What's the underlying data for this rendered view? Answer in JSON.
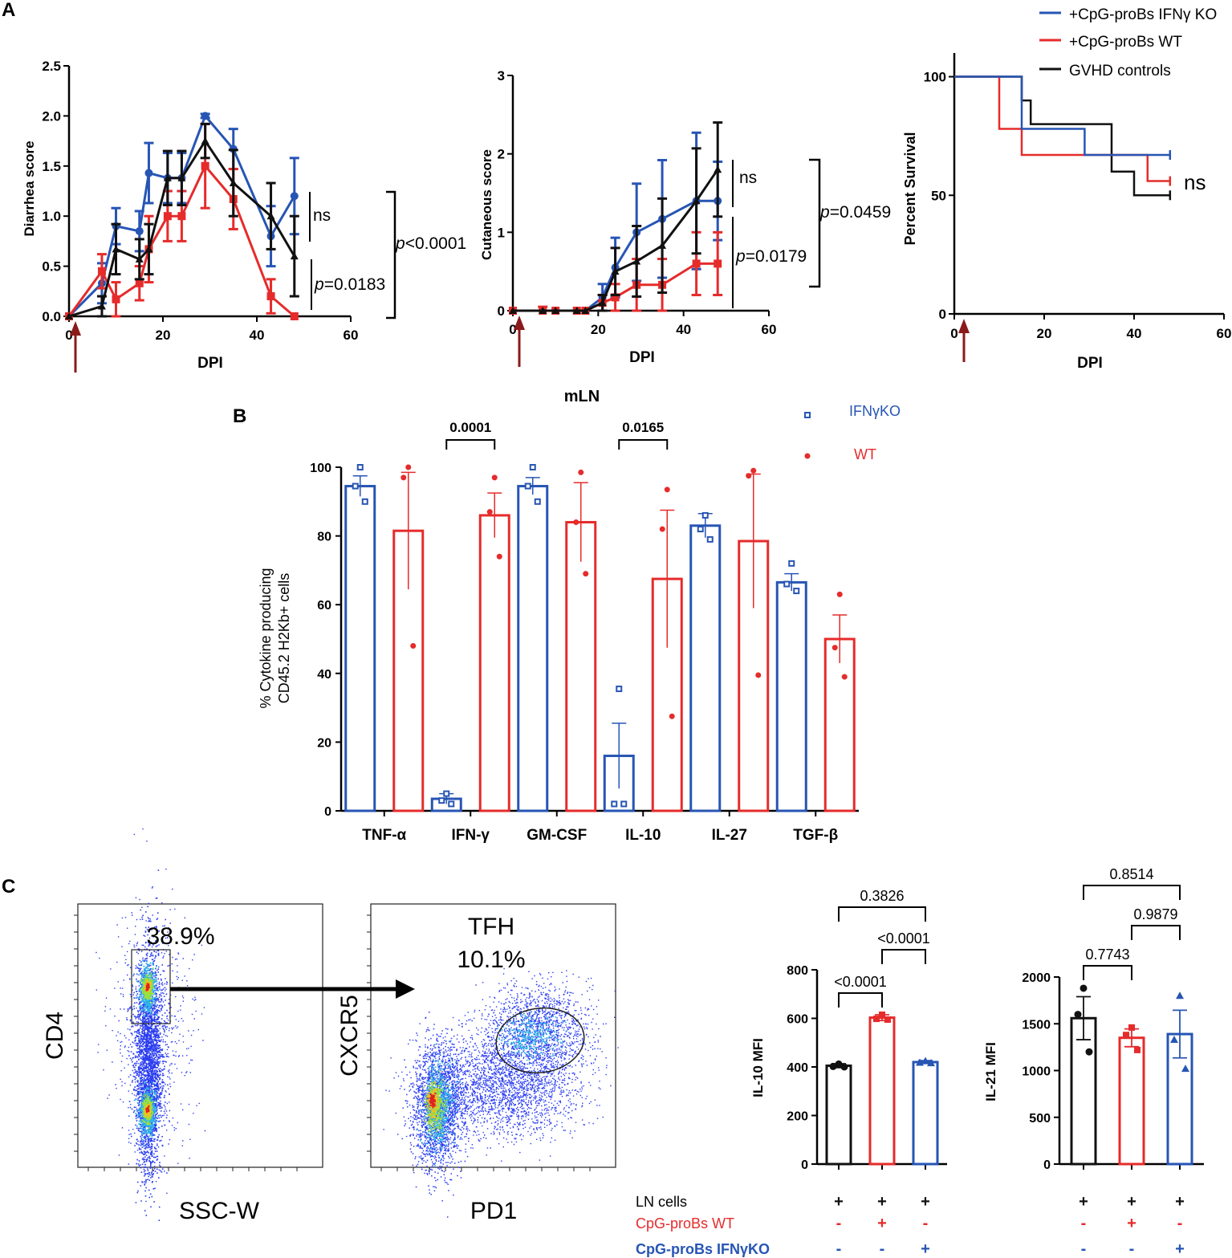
{
  "panel_labels": {
    "a": "A",
    "b": "B",
    "c": "C"
  },
  "colors": {
    "blue": "#2755b4",
    "red": "#e62b2b",
    "black": "#111111",
    "arrow": "#8b1a1a"
  },
  "legend_a": [
    {
      "label": "+CpG-proBs IFNγ KO",
      "color": "#2755b4"
    },
    {
      "label": "+CpG-proBs WT",
      "color": "#e62b2b"
    },
    {
      "label": "GVHD controls",
      "color": "#111111"
    }
  ],
  "chart_data": [
    {
      "id": "diarrhea",
      "type": "line",
      "ylabel": "Diarrhea score",
      "xlabel": "DPI",
      "xlim": [
        0,
        60
      ],
      "ylim": [
        0,
        2.5
      ],
      "xticks": [
        "0",
        "20",
        "40",
        "60"
      ],
      "yticks": [
        "0.0",
        "0.5",
        "1.0",
        "1.5",
        "2.0",
        "2.5"
      ],
      "x": [
        0,
        7,
        10,
        15,
        17,
        21,
        24,
        29,
        35,
        43,
        48
      ],
      "series": [
        {
          "name": "+CpG-proBs IFNγ KO",
          "color": "#2755b4",
          "values": [
            0,
            0.33,
            0.9,
            0.85,
            1.43,
            1.38,
            1.38,
            2.0,
            1.67,
            0.8,
            1.2
          ],
          "err": [
            0,
            0.2,
            0.18,
            0.2,
            0.3,
            0.25,
            0.25,
            0.02,
            0.2,
            0.3,
            0.38
          ]
        },
        {
          "name": "+CpG-proBs WT",
          "color": "#e62b2b",
          "values": [
            0,
            0.45,
            0.17,
            0.33,
            0.67,
            1.0,
            1.0,
            1.5,
            1.17,
            0.2,
            0.0
          ],
          "err": [
            0,
            0.17,
            0.17,
            0.17,
            0.33,
            0.25,
            0.25,
            0.42,
            0.3,
            0.17,
            0
          ]
        },
        {
          "name": "GVHD controls",
          "color": "#111111",
          "values": [
            0,
            0.1,
            0.67,
            0.57,
            0.67,
            1.38,
            1.38,
            1.75,
            1.33,
            1.0,
            0.6
          ],
          "err": [
            0,
            0.1,
            0.25,
            0.2,
            0.25,
            0.27,
            0.27,
            0.17,
            0.33,
            0.33,
            0.4
          ]
        }
      ],
      "annotations": [
        "ns",
        "p=0.0183",
        "p<0.0001"
      ]
    },
    {
      "id": "cutaneous",
      "type": "line",
      "ylabel": "Cutaneous score",
      "xlabel": "DPI",
      "xlim": [
        0,
        60
      ],
      "ylim": [
        0,
        3
      ],
      "xticks": [
        "0",
        "20",
        "40",
        "60"
      ],
      "yticks": [
        "0",
        "1",
        "2",
        "3"
      ],
      "x": [
        0,
        7,
        10,
        15,
        17,
        21,
        24,
        29,
        35,
        43,
        48
      ],
      "series": [
        {
          "name": "+CpG-proBs IFNγ KO",
          "color": "#2755b4",
          "values": [
            0,
            0,
            0,
            0,
            0,
            0.17,
            0.55,
            1.0,
            1.17,
            1.4,
            1.4
          ],
          "err": [
            0,
            0,
            0,
            0,
            0,
            0.17,
            0.38,
            0.62,
            0.75,
            0.87,
            0.5
          ]
        },
        {
          "name": "+CpG-proBs WT",
          "color": "#e62b2b",
          "values": [
            0,
            0,
            0,
            0,
            0,
            0.1,
            0.17,
            0.33,
            0.33,
            0.6,
            0.6
          ],
          "err": [
            0,
            0.05,
            0,
            0,
            0,
            0.1,
            0.17,
            0.33,
            0.33,
            0.4,
            0.4
          ]
        },
        {
          "name": "GVHD controls",
          "color": "#111111",
          "values": [
            0,
            0,
            0,
            0,
            0,
            0.1,
            0.5,
            0.63,
            0.83,
            1.4,
            1.8
          ],
          "err": [
            0,
            0,
            0,
            0,
            0,
            0.1,
            0.3,
            0.45,
            0.6,
            0.67,
            0.6
          ]
        }
      ],
      "annotations": [
        "ns",
        "p=0.0179",
        "p=0.0459"
      ]
    },
    {
      "id": "survival",
      "type": "line",
      "ylabel": "Percent Survival",
      "xlabel": "DPI",
      "xlim": [
        0,
        60
      ],
      "ylim": [
        0,
        110
      ],
      "xticks": [
        "0",
        "20",
        "40",
        "60"
      ],
      "yticks": [
        "0",
        "50",
        "100"
      ],
      "series": [
        {
          "name": "+CpG-proBs IFNγ KO",
          "color": "#2755b4",
          "steps": [
            [
              0,
              100
            ],
            [
              15,
              100
            ],
            [
              15,
              78
            ],
            [
              29,
              78
            ],
            [
              29,
              67
            ],
            [
              48,
              67
            ]
          ]
        },
        {
          "name": "+CpG-proBs WT",
          "color": "#e62b2b",
          "steps": [
            [
              0,
              100
            ],
            [
              10,
              100
            ],
            [
              10,
              78
            ],
            [
              15,
              78
            ],
            [
              15,
              67
            ],
            [
              43,
              67
            ],
            [
              43,
              56
            ],
            [
              48,
              56
            ]
          ]
        },
        {
          "name": "GVHD controls",
          "color": "#111111",
          "steps": [
            [
              0,
              100
            ],
            [
              15,
              100
            ],
            [
              15,
              90
            ],
            [
              17,
              90
            ],
            [
              17,
              80
            ],
            [
              35,
              80
            ],
            [
              35,
              60
            ],
            [
              40,
              60
            ],
            [
              40,
              50
            ],
            [
              48,
              50
            ]
          ]
        }
      ],
      "annotations": [
        "ns"
      ]
    },
    {
      "id": "cytokine",
      "type": "bar",
      "title": "mLN",
      "ylabel": "% Cytokine producing CD45.2 H2Kb+ cells",
      "ylim": [
        0,
        100
      ],
      "yticks": [
        "0",
        "20",
        "40",
        "60",
        "80",
        "100"
      ],
      "categories": [
        "TNF-α",
        "IFN-γ",
        "GM-CSF",
        "IL-10",
        "IL-27",
        "TGF-β"
      ],
      "series": [
        {
          "name": "IFNγKO",
          "color": "#2755b4",
          "values": [
            94.5,
            3.5,
            94.5,
            16,
            83,
            66.5
          ],
          "err": [
            3,
            1.5,
            2.5,
            9.5,
            3.5,
            2.5
          ],
          "points": [
            [
              100,
              94.5,
              90
            ],
            [
              5,
              3,
              2
            ],
            [
              100,
              94.5,
              90
            ],
            [
              35.5,
              2,
              2
            ],
            [
              86,
              82,
              79
            ],
            [
              72,
              66,
              64
            ]
          ]
        },
        {
          "name": "WT",
          "color": "#e62b2b",
          "values": [
            81.5,
            86,
            84,
            67.5,
            78.5,
            50
          ],
          "err": [
            17,
            6.5,
            11.5,
            20,
            19.5,
            7
          ],
          "points": [
            [
              100,
              97,
              48
            ],
            [
              97,
              87,
              74
            ],
            [
              98.5,
              84,
              69
            ],
            [
              93.5,
              82,
              27.5
            ],
            [
              99,
              97.5,
              39.5
            ],
            [
              63,
              47.5,
              39
            ]
          ]
        }
      ],
      "comparisons": [
        {
          "left": "IFN-γ",
          "label": "0.0001"
        },
        {
          "left": "IL-10",
          "label": "0.0165"
        }
      ]
    },
    {
      "id": "il10",
      "type": "bar",
      "ylabel": "IL-10 MFI",
      "ylim": [
        0,
        800
      ],
      "yticks": [
        "0",
        "200",
        "400",
        "600",
        "800"
      ],
      "categories": [
        "LN",
        "CpG-proBs WT",
        "CpG-proBs IFNγKO"
      ],
      "values": [
        405,
        603,
        420
      ],
      "err": [
        8,
        12,
        6
      ],
      "points": [
        [
          412,
          402,
          400
        ],
        [
          615,
          598,
          595
        ],
        [
          425,
          418,
          416
        ]
      ],
      "colors": [
        "#111111",
        "#e62b2b",
        "#2755b4"
      ],
      "comparisons": [
        {
          "from": 0,
          "to": 1,
          "label": "<0.0001"
        },
        {
          "from": 1,
          "to": 2,
          "label": "<0.0001"
        },
        {
          "from": 0,
          "to": 2,
          "label": "0.3826"
        }
      ]
    },
    {
      "id": "il21",
      "type": "bar",
      "ylabel": "IL-21 MFI",
      "ylim": [
        0,
        2000
      ],
      "yticks": [
        "0",
        "500",
        "1000",
        "1500",
        "2000"
      ],
      "categories": [
        "LN",
        "CpG-proBs WT",
        "CpG-proBs IFNγKO"
      ],
      "values": [
        1560,
        1350,
        1390
      ],
      "err": [
        230,
        95,
        255
      ],
      "points": [
        [
          1880,
          1600,
          1200
        ],
        [
          1460,
          1380,
          1220
        ],
        [
          1800,
          1330,
          1020
        ]
      ],
      "colors": [
        "#111111",
        "#e62b2b",
        "#2755b4"
      ],
      "comparisons": [
        {
          "from": 0,
          "to": 1,
          "label": "0.7743"
        },
        {
          "from": 1,
          "to": 2,
          "label": "0.9879"
        },
        {
          "from": 0,
          "to": 2,
          "label": "0.8514"
        }
      ]
    }
  ],
  "annotations": {
    "a_ns": "ns",
    "a_p1": "p=0.0183",
    "a_p2": "p<0.0001",
    "b_ns": "ns",
    "b_p1": "p=0.0179",
    "b_p2": "p=0.0459",
    "c_ns": "ns"
  },
  "axis_labels": {
    "diarrhea_y": "Diarrhea score",
    "cutaneous_y": "Cutaneous score",
    "survival_y": "Percent Survival",
    "dpi": "DPI",
    "cytokine_title": "mLN",
    "cytokine_y1": "% Cytokine producing",
    "cytokine_y2": "CD45.2 H2Kb+ cells",
    "il10_y": "IL-10 MFI",
    "il21_y": "IL-21 MFI"
  },
  "legend_b": [
    {
      "label": "IFNγKO",
      "color": "#2755b4"
    },
    {
      "label": "WT",
      "color": "#e62b2b"
    }
  ],
  "flow": {
    "plot1": {
      "xlabel": "SSC-W",
      "ylabel": "CD4",
      "gate_value": "38.9%"
    },
    "plot2": {
      "xlabel": "PD1",
      "ylabel": "CXCR5",
      "gate_name": "TFH",
      "gate_value": "10.1%"
    }
  },
  "conditions": {
    "rows": [
      {
        "label": "LN cells",
        "color": "#111111",
        "signs": [
          "+",
          "+",
          "+"
        ]
      },
      {
        "label": "CpG-proBs WT",
        "color": "#e62b2b",
        "signs": [
          "-",
          "+",
          "-"
        ]
      },
      {
        "label": "CpG-proBs IFNγKO",
        "color": "#2755b4",
        "signs": [
          "-",
          "-",
          "+"
        ]
      }
    ]
  }
}
